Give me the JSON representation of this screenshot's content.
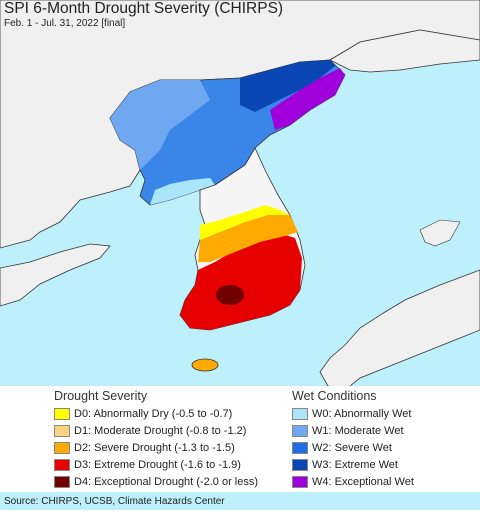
{
  "title": "SPI 6-Month Drought Severity (CHIRPS)",
  "subtitle": "Feb. 1 - Jul. 31, 2022 [final]",
  "source": "Source: CHIRPS, UCSB, Climate Hazards Center",
  "colors": {
    "water": "#bdf0fb",
    "land_neutral": "#f0f0f0",
    "border": "#333333"
  },
  "legend": {
    "drought": {
      "heading": "Drought Severity",
      "items": [
        {
          "label": "D0: Abnormally Dry (-0.5 to -0.7)",
          "color": "#ffff00"
        },
        {
          "label": "D1: Moderate Drought (-0.8 to -1.2)",
          "color": "#fcd37f"
        },
        {
          "label": "D2: Severe Drought (-1.3 to -1.5)",
          "color": "#ffaa00"
        },
        {
          "label": "D3: Extreme Drought (-1.6 to -1.9)",
          "color": "#e60000"
        },
        {
          "label": "D4: Exceptional Drought (-2.0 or less)",
          "color": "#730000"
        }
      ]
    },
    "wet": {
      "heading": "Wet Conditions",
      "items": [
        {
          "label": "W0: Abnormally Wet",
          "color": "#aae5fa"
        },
        {
          "label": "W1: Moderate Wet",
          "color": "#6fa8f0"
        },
        {
          "label": "W2: Severe Wet",
          "color": "#1e6ee6"
        },
        {
          "label": "W3: Extreme Wet",
          "color": "#0a46b4"
        },
        {
          "label": "W4: Exceptional Wet",
          "color": "#a000dc"
        }
      ]
    }
  }
}
